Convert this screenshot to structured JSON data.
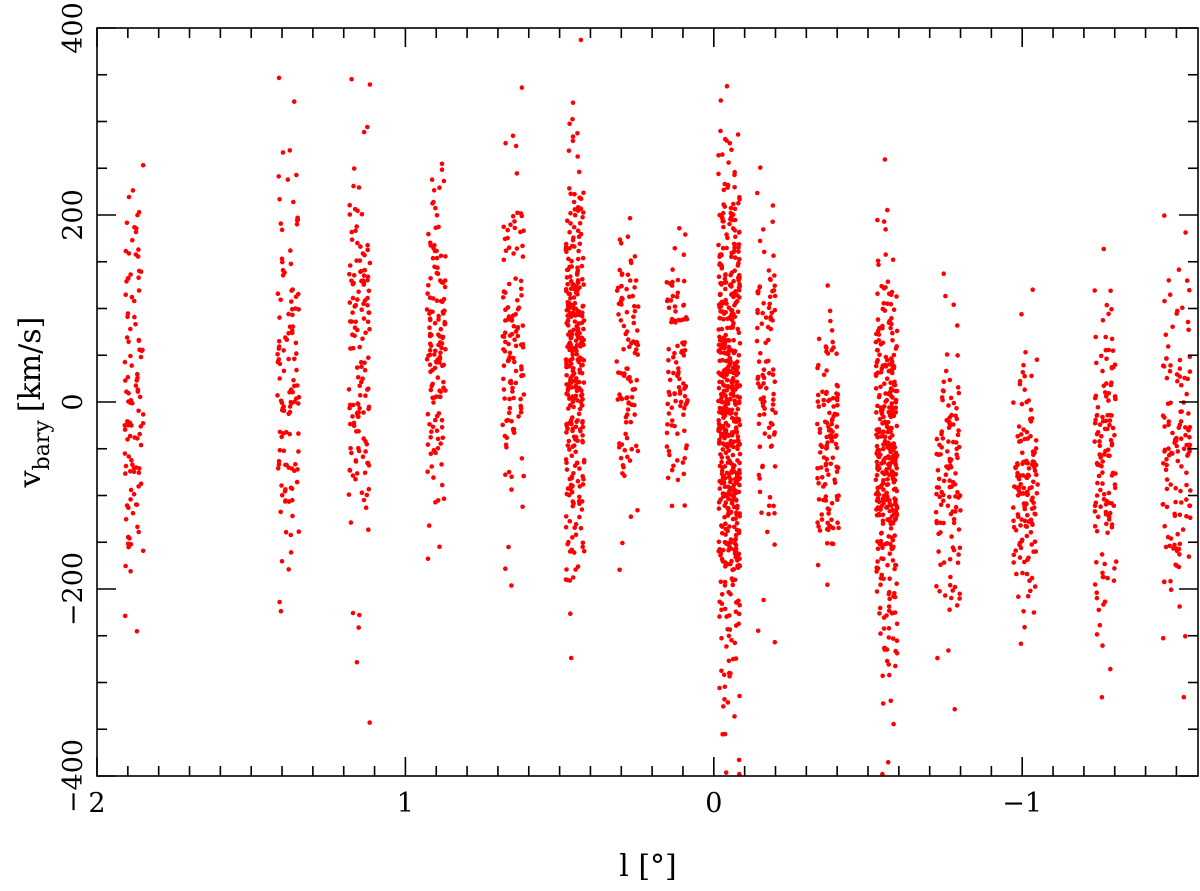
{
  "chart_data": {
    "type": "scatter",
    "title": "",
    "xlabel": "l [°]",
    "ylabel": {
      "main": "v",
      "sub": "bary",
      "unit": "[km/s]"
    },
    "xlim": [
      2.0,
      -1.57
    ],
    "ylim": [
      -400,
      400
    ],
    "x_reversed": true,
    "x_ticks": [
      2,
      1,
      0,
      -1
    ],
    "x_tick_labels": [
      "2",
      "1",
      "0",
      "−1"
    ],
    "y_ticks": [
      -400,
      -200,
      0,
      200,
      400
    ],
    "y_tick_labels": [
      "−400",
      "−200",
      "0",
      "200",
      "400"
    ],
    "grid": false,
    "marker_color": "#ff0000",
    "series": [
      {
        "fields": [
          {
            "center": 1.88,
            "half_width": 0.03,
            "count": 110,
            "mean": 20,
            "sd": 110
          },
          {
            "center": 1.38,
            "half_width": 0.035,
            "count": 120,
            "mean": 30,
            "sd": 110
          },
          {
            "center": 1.15,
            "half_width": 0.035,
            "count": 140,
            "mean": 40,
            "sd": 110
          },
          {
            "center": 0.9,
            "half_width": 0.03,
            "count": 140,
            "mean": 50,
            "sd": 85
          },
          {
            "center": 0.65,
            "half_width": 0.035,
            "count": 120,
            "mean": 60,
            "sd": 90
          },
          {
            "center": 0.45,
            "half_width": 0.03,
            "count": 320,
            "mean": 40,
            "sd": 110
          },
          {
            "center": 0.28,
            "half_width": 0.035,
            "count": 100,
            "mean": 30,
            "sd": 80
          },
          {
            "center": 0.12,
            "half_width": 0.035,
            "count": 100,
            "mean": 30,
            "sd": 70
          },
          {
            "center": -0.05,
            "half_width": 0.035,
            "count": 560,
            "mean": -15,
            "sd": 130
          },
          {
            "center": -0.17,
            "half_width": 0.03,
            "count": 100,
            "mean": 10,
            "sd": 110
          },
          {
            "center": -0.37,
            "half_width": 0.035,
            "count": 120,
            "mean": -50,
            "sd": 70
          },
          {
            "center": -0.56,
            "half_width": 0.035,
            "count": 360,
            "mean": -70,
            "sd": 105
          },
          {
            "center": -0.76,
            "half_width": 0.04,
            "count": 120,
            "mean": -75,
            "sd": 75
          },
          {
            "center": -1.01,
            "half_width": 0.04,
            "count": 140,
            "mean": -85,
            "sd": 75
          },
          {
            "center": -1.27,
            "half_width": 0.035,
            "count": 130,
            "mean": -60,
            "sd": 85
          },
          {
            "center": -1.5,
            "half_width": 0.045,
            "count": 130,
            "mean": -50,
            "sd": 95
          }
        ]
      }
    ]
  }
}
